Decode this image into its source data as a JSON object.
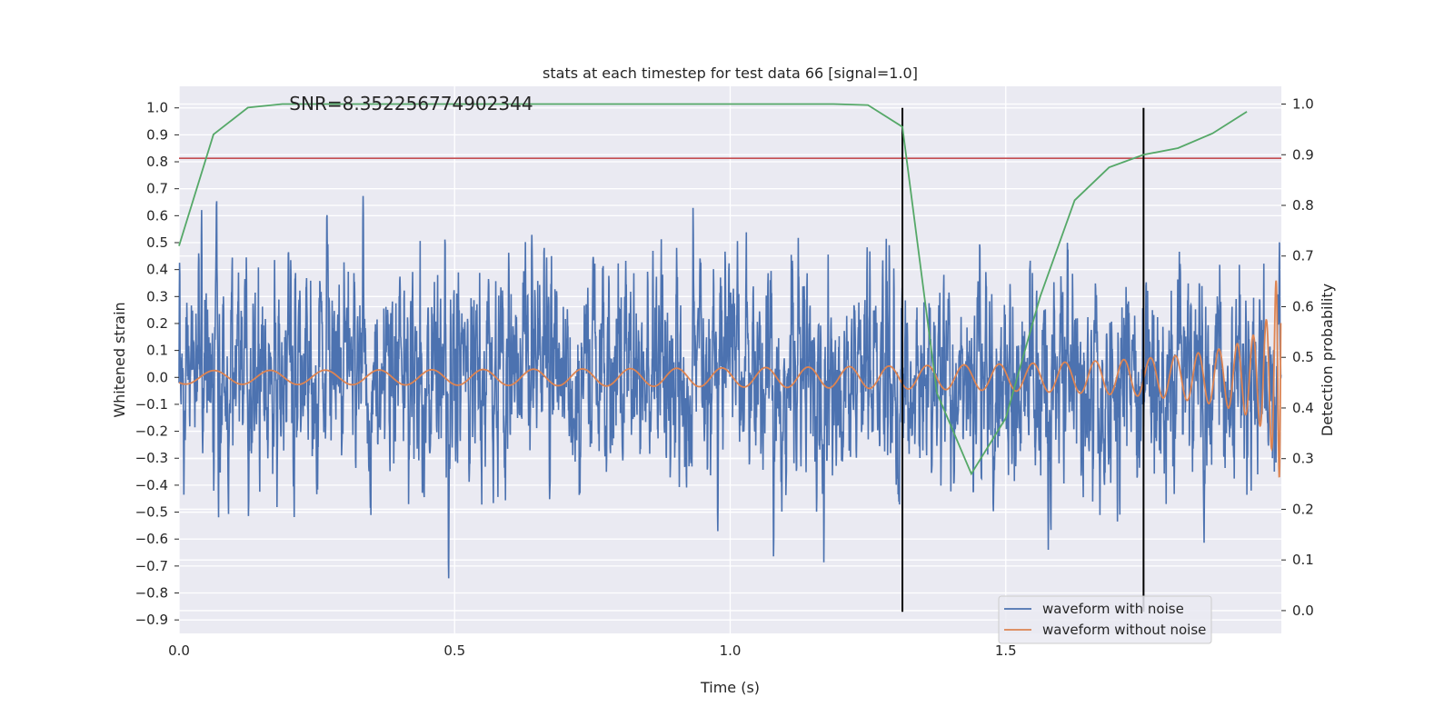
{
  "chart_data": {
    "type": "line",
    "title": "stats at each timestep for test data 66 [signal=1.0]",
    "annotation": "SNR=8.352256774902344",
    "xlabel": "Time (s)",
    "ylabel": "Whitened strain",
    "y2label": "Detection probability",
    "xlim": [
      0.0,
      2.0
    ],
    "ylim": [
      -0.95,
      1.08
    ],
    "y2lim": [
      -0.045,
      1.035
    ],
    "x_ticks": [
      "0.0",
      "0.5",
      "1.0",
      "1.5"
    ],
    "x_tick_values": [
      0.0,
      0.5,
      1.0,
      1.5
    ],
    "y_ticks": [
      "1.0",
      "0.9",
      "0.8",
      "0.7",
      "0.6",
      "0.5",
      "0.4",
      "0.3",
      "0.2",
      "0.1",
      "0.0",
      "−0.1",
      "−0.2",
      "−0.3",
      "−0.4",
      "−0.5",
      "−0.6",
      "−0.7",
      "−0.8",
      "−0.9"
    ],
    "y_tick_values": [
      1.0,
      0.9,
      0.8,
      0.7,
      0.6,
      0.5,
      0.4,
      0.3,
      0.2,
      0.1,
      0.0,
      -0.1,
      -0.2,
      -0.3,
      -0.4,
      -0.5,
      -0.6,
      -0.7,
      -0.8,
      -0.9
    ],
    "y2_ticks": [
      "1.0",
      "0.9",
      "0.8",
      "0.7",
      "0.6",
      "0.5",
      "0.4",
      "0.3",
      "0.2",
      "0.1",
      "0.0"
    ],
    "y2_tick_values": [
      1.0,
      0.9,
      0.8,
      0.7,
      0.6,
      0.5,
      0.4,
      0.3,
      0.2,
      0.1,
      0.0
    ],
    "grid": true,
    "legend_position": "bottom-right",
    "series": [
      {
        "name": "waveform with noise",
        "color": "#4c72b0",
        "kind": "noise",
        "sample_rate": 2048,
        "amplitude_range": [
          -0.83,
          0.9
        ]
      },
      {
        "name": "waveform without noise",
        "color": "#dd8452",
        "kind": "chirp",
        "amplitude_start": 0.025,
        "amplitude_end": 0.4
      },
      {
        "color": "#55a868",
        "axis": "right",
        "x": [
          0.0,
          0.0625,
          0.125,
          0.1875,
          0.25,
          0.5,
          0.75,
          1.0,
          1.1875,
          1.25,
          1.3125,
          1.375,
          1.4375,
          1.5,
          1.5625,
          1.625,
          1.6875,
          1.75,
          1.8125,
          1.875,
          1.9375
        ],
        "y": [
          0.72,
          0.94,
          0.993,
          1.0,
          1.0,
          1.0,
          1.0,
          1.0,
          1.0,
          0.998,
          0.955,
          0.43,
          0.27,
          0.38,
          0.62,
          0.81,
          0.875,
          0.9,
          0.913,
          0.942,
          0.985
        ]
      }
    ],
    "hlines": [
      {
        "axis": "left",
        "y": 0.813,
        "color": "#c44e52"
      }
    ],
    "vlines": [
      {
        "x": 1.3125,
        "ymin": -0.87,
        "ymax": 1.0,
        "color": "#000000"
      },
      {
        "x": 1.75,
        "ymin": -0.87,
        "ymax": 1.0,
        "color": "#000000"
      }
    ],
    "colors": {
      "plot_bg": "#eaeaf2",
      "grid": "#ffffff",
      "text": "#262626"
    }
  }
}
